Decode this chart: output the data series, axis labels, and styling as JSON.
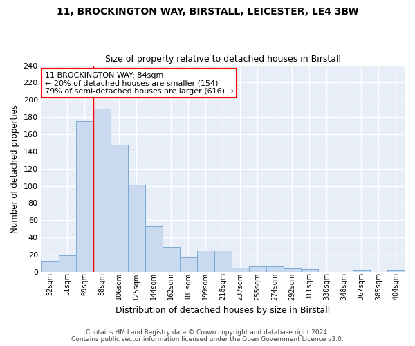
{
  "title1": "11, BROCKINGTON WAY, BIRSTALL, LEICESTER, LE4 3BW",
  "title2": "Size of property relative to detached houses in Birstall",
  "xlabel": "Distribution of detached houses by size in Birstall",
  "ylabel": "Number of detached properties",
  "bar_color": "#c9d9f0",
  "bar_edge_color": "#7aaad4",
  "background_color": "#e8eef8",
  "grid_color": "#ffffff",
  "categories": [
    "32sqm",
    "51sqm",
    "69sqm",
    "88sqm",
    "106sqm",
    "125sqm",
    "144sqm",
    "162sqm",
    "181sqm",
    "199sqm",
    "218sqm",
    "237sqm",
    "255sqm",
    "274sqm",
    "292sqm",
    "311sqm",
    "330sqm",
    "348sqm",
    "367sqm",
    "385sqm",
    "404sqm"
  ],
  "values": [
    13,
    19,
    175,
    190,
    148,
    101,
    53,
    29,
    17,
    25,
    25,
    5,
    6,
    6,
    4,
    3,
    0,
    0,
    2,
    0,
    2
  ],
  "red_line_index": 3,
  "annotation_text": "11 BROCKINGTON WAY: 84sqm\n← 20% of detached houses are smaller (154)\n79% of semi-detached houses are larger (616) →",
  "ylim": [
    0,
    240
  ],
  "yticks": [
    0,
    20,
    40,
    60,
    80,
    100,
    120,
    140,
    160,
    180,
    200,
    220,
    240
  ],
  "footer": "Contains HM Land Registry data © Crown copyright and database right 2024.\nContains public sector information licensed under the Open Government Licence v3.0."
}
